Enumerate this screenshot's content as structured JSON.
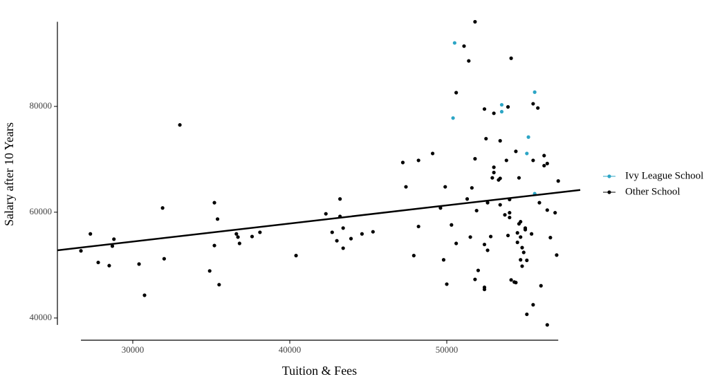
{
  "chart_data": {
    "type": "scatter",
    "x_label": "Tuition & Fees",
    "y_label": "Salary after 10 Years",
    "xlim": [
      25200,
      58500
    ],
    "ylim": [
      36000,
      97500
    ],
    "xticks": [
      30000,
      40000,
      50000
    ],
    "yticks": [
      40000,
      60000,
      80000
    ],
    "legend": "right",
    "frame": "range",
    "series": [
      {
        "name": "Ivy League School",
        "color": "#2ca5c5",
        "x": [
          50500,
          50400,
          53500,
          53500,
          55600,
          55200,
          55100,
          55600
        ],
        "values": [
          92000,
          77800,
          80300,
          79000,
          82700,
          74200,
          71100,
          63500
        ]
      },
      {
        "name": "Other School",
        "color": "#000000",
        "x": [
          26700,
          27300,
          27800,
          28500,
          28700,
          28800,
          30400,
          30750,
          31900,
          32000,
          33000,
          34900,
          35200,
          35200,
          35400,
          35500,
          36600,
          36700,
          36800,
          37600,
          38100,
          40400,
          42300,
          42700,
          43000,
          43200,
          43200,
          43400,
          43400,
          43900,
          44600,
          45300,
          47200,
          47400,
          47900,
          48200,
          48200,
          49100,
          49600,
          49800,
          49900,
          50000,
          50300,
          50600,
          50600,
          51100,
          51300,
          51400,
          51500,
          51600,
          51800,
          51800,
          51800,
          51900,
          52000,
          52400,
          52400,
          52400,
          52400,
          52500,
          52600,
          52600,
          52800,
          52900,
          53000,
          53000,
          53000,
          53300,
          53400,
          53400,
          53400,
          53700,
          53800,
          53900,
          53900,
          54000,
          54000,
          54000,
          54100,
          54100,
          54300,
          54400,
          54400,
          54500,
          54500,
          54600,
          54600,
          54700,
          54700,
          54700,
          54800,
          54800,
          54900,
          55000,
          55000,
          55100,
          55100,
          55400,
          55500,
          55500,
          55500,
          55800,
          55900,
          56000,
          56200,
          56200,
          56400,
          56400,
          56400,
          56600,
          56900,
          57000,
          57100
        ],
        "values": [
          52700,
          55900,
          50500,
          49900,
          53600,
          54900,
          50200,
          44300,
          60800,
          51200,
          76500,
          48900,
          61800,
          53700,
          58700,
          46300,
          55900,
          55300,
          54100,
          55400,
          56200,
          51800,
          59700,
          56200,
          54600,
          62500,
          59200,
          57000,
          53200,
          55000,
          55900,
          56300,
          69400,
          64800,
          51800,
          69800,
          57300,
          71100,
          60800,
          51000,
          64800,
          46400,
          57600,
          82600,
          54100,
          91400,
          62500,
          88600,
          55300,
          64600,
          70100,
          47300,
          96000,
          60300,
          49000,
          79500,
          53900,
          45800,
          45400,
          73900,
          61800,
          52800,
          55400,
          66500,
          68500,
          78700,
          67500,
          66100,
          66400,
          61400,
          73500,
          59500,
          69800,
          55600,
          79900,
          62400,
          59000,
          59900,
          47200,
          89100,
          46800,
          46700,
          71500,
          56100,
          54300,
          57800,
          66500,
          58200,
          55300,
          51000,
          49800,
          53300,
          52400,
          57000,
          56700,
          50900,
          40700,
          55900,
          69800,
          42500,
          80500,
          79700,
          61800,
          46100,
          68800,
          70700,
          38700,
          69200,
          60400,
          55200,
          59900,
          51900,
          65900
        ]
      }
    ],
    "trend": {
      "color": "#000000",
      "x": [
        25200,
        58500
      ],
      "values": [
        52800,
        64200
      ]
    }
  }
}
